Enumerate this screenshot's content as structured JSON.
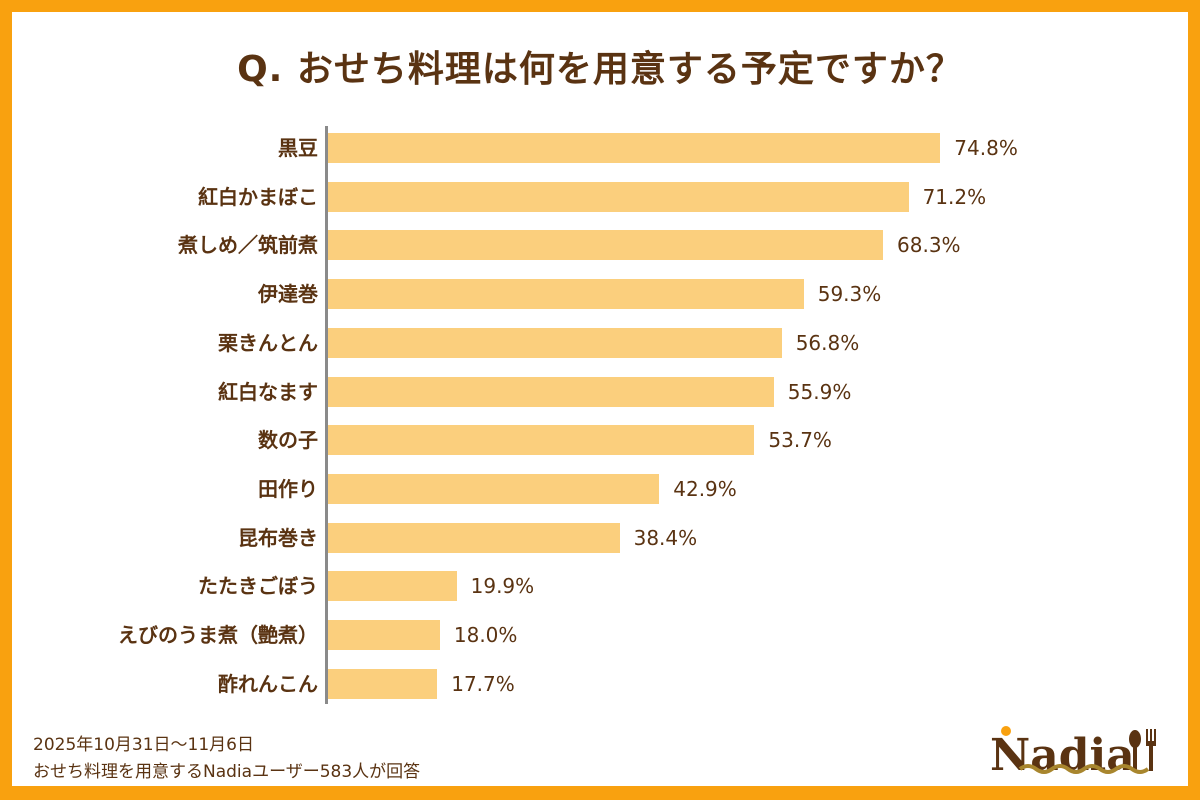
{
  "chart_data": {
    "type": "bar",
    "orientation": "horizontal",
    "title": "Q. おせち料理は何を用意する予定ですか？",
    "categories": [
      "黒豆",
      "紅白かまぼこ",
      "煮しめ／筑前煮",
      "伊達巻",
      "栗きんとん",
      "紅白なます",
      "数の子",
      "田作り",
      "昆布巻き",
      "たたきごぼう",
      "えびのうま煮（艶煮）",
      "酢れんこん"
    ],
    "values": [
      74.8,
      71.2,
      68.3,
      59.3,
      56.8,
      55.9,
      53.7,
      42.9,
      38.4,
      19.9,
      18.0,
      17.7
    ],
    "labels": [
      "74.8%",
      "71.2%",
      "68.3%",
      "59.3%",
      "56.8%",
      "55.9%",
      "53.7%",
      "42.9%",
      "38.4%",
      "19.9%",
      "18.0%",
      "17.7%"
    ],
    "xlabel": "",
    "ylabel": "",
    "grid": false,
    "bar_color": "#FBCF7D"
  },
  "footer": {
    "period": "2025年10月31日～11月6日",
    "respondents": "おせち料理を用意するNadiaユーザー583人が回答"
  },
  "logo": {
    "text": "Nadia",
    "brand_color": "#5a3312",
    "accent_color": "#F9A10F"
  },
  "colors": {
    "border": "#F9A10F",
    "text": "#5a3312"
  }
}
